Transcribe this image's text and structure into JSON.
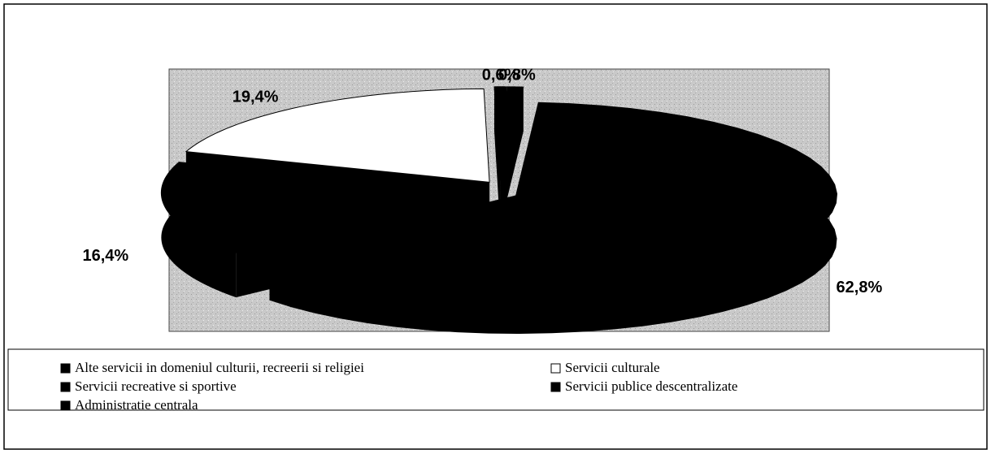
{
  "chart_data": {
    "type": "pie",
    "categories": [
      "Alte servicii in domeniul culturii, recreerii si religiei",
      "Servicii culturale",
      "Servicii recreative si sportive",
      "Servicii publice descentralizate",
      "Administratie centrala"
    ],
    "values": [
      0.6,
      19.4,
      16.4,
      62.8,
      0.8
    ],
    "value_labels": [
      "0,6%",
      "19,4%",
      "16,4%",
      "62,8%",
      "0,8%"
    ],
    "colors": [
      "#000000",
      "#ffffff",
      "#000000",
      "#000000",
      "#000000"
    ],
    "legend": "bottom"
  }
}
